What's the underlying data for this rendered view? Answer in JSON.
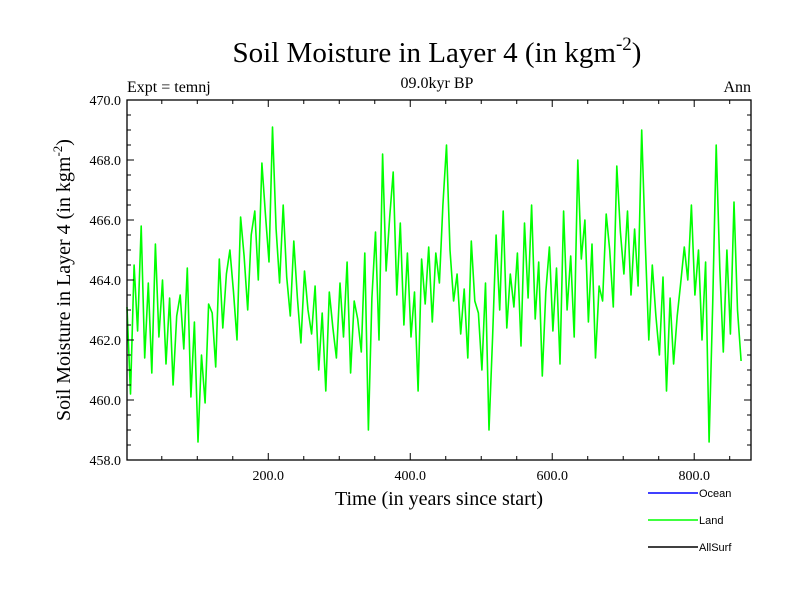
{
  "chart_data": {
    "type": "line",
    "title_main": "Soil Moisture in Layer 4 (in kgm",
    "title_sup": "-2",
    "title_close": ")",
    "subtitle_left": "Expt = temnj",
    "subtitle_center": "09.0kyr BP",
    "subtitle_right": "Ann",
    "xlabel": "Time (in years since start)",
    "ylabel_main": "Soil Moisture in Layer 4 (in kgm",
    "ylabel_sup": "-2",
    "ylabel_close": ")",
    "xlim": [
      1,
      880
    ],
    "ylim": [
      458,
      470
    ],
    "x_ticks": [
      200,
      400,
      600,
      800
    ],
    "x_tick_labels": [
      "200.0",
      "400.0",
      "600.0",
      "800.0"
    ],
    "y_ticks": [
      458,
      460,
      462,
      464,
      466,
      468,
      470
    ],
    "y_tick_labels": [
      "458.0",
      "460.0",
      "462.0",
      "464.0",
      "466.0",
      "468.0",
      "470.0"
    ],
    "legend": [
      {
        "name": "Ocean",
        "color": "#0000ff"
      },
      {
        "name": "Land",
        "color": "#00ff00"
      },
      {
        "name": "AllSurf",
        "color": "#000000"
      }
    ],
    "series": [
      {
        "name": "Land",
        "color": "#00ff00",
        "x_start": 1,
        "x_step": 5,
        "values": [
          463.1,
          460.2,
          464.5,
          462.3,
          465.8,
          461.4,
          463.9,
          460.9,
          465.2,
          462.1,
          464.0,
          461.2,
          463.4,
          460.5,
          462.8,
          463.5,
          461.7,
          464.4,
          460.1,
          462.6,
          458.6,
          461.5,
          459.9,
          463.2,
          462.9,
          461.1,
          464.7,
          462.4,
          464.2,
          465.0,
          463.6,
          462.0,
          466.1,
          464.8,
          463.0,
          465.5,
          466.3,
          464.0,
          467.9,
          466.2,
          464.6,
          469.1,
          465.7,
          463.9,
          466.5,
          464.1,
          462.8,
          465.3,
          463.4,
          461.9,
          464.3,
          463.0,
          462.2,
          463.8,
          461.0,
          462.9,
          460.3,
          463.6,
          462.4,
          461.4,
          463.9,
          462.1,
          464.6,
          460.9,
          463.3,
          462.7,
          461.6,
          464.9,
          459.0,
          463.4,
          465.6,
          462.0,
          468.2,
          464.3,
          466.1,
          467.6,
          463.5,
          465.9,
          462.5,
          464.9,
          462.1,
          463.6,
          460.3,
          464.7,
          463.2,
          465.1,
          462.6,
          464.9,
          463.9,
          466.5,
          468.5,
          465.0,
          463.3,
          464.2,
          462.2,
          463.7,
          461.4,
          465.3,
          463.3,
          462.9,
          461.0,
          463.9,
          459.0,
          462.1,
          465.5,
          463.0,
          466.3,
          462.4,
          464.2,
          463.1,
          464.9,
          461.8,
          465.9,
          463.4,
          466.5,
          462.7,
          464.6,
          460.8,
          463.6,
          465.1,
          462.3,
          464.4,
          461.2,
          466.3,
          463.0,
          464.8,
          462.1,
          468.0,
          464.7,
          466.0,
          462.6,
          465.2,
          461.4,
          463.8,
          463.3,
          466.2,
          465.0,
          463.1,
          467.8,
          465.6,
          464.2,
          466.3,
          463.5,
          465.7,
          463.8,
          469.0,
          465.3,
          462.0,
          464.5,
          462.8,
          461.5,
          464.1,
          460.3,
          463.4,
          461.2,
          462.8,
          463.9,
          465.1,
          464.0,
          466.5,
          463.5,
          465.0,
          462.0,
          464.6,
          458.6,
          463.2,
          468.5,
          464.4,
          461.6,
          465.0,
          462.2,
          466.6,
          463.0,
          461.3
        ]
      }
    ]
  }
}
